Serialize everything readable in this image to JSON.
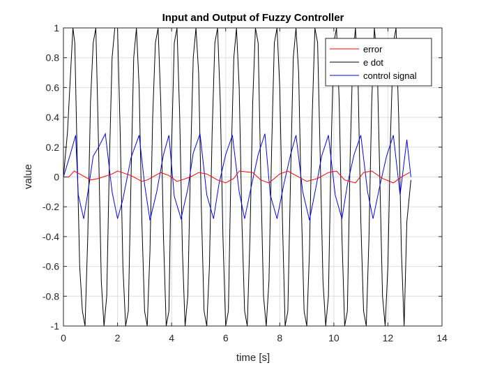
{
  "chart_data": {
    "type": "line",
    "title": "Input and Output of Fuzzy Controller",
    "xlabel": "time [s]",
    "ylabel": "value",
    "xlim": [
      0,
      14
    ],
    "ylim": [
      -1,
      1
    ],
    "xticks": [
      0,
      2,
      4,
      6,
      8,
      10,
      12,
      14
    ],
    "yticks": [
      -1,
      -0.8,
      -0.6,
      -0.4,
      -0.2,
      0,
      0.2,
      0.4,
      0.6,
      0.8,
      1
    ],
    "xtick_labels": [
      "0",
      "2",
      "4",
      "6",
      "8",
      "10",
      "12",
      "14"
    ],
    "ytick_labels": [
      "-1",
      "-0.8",
      "-0.6",
      "-0.4",
      "-0.2",
      "0",
      "0.2",
      "0.4",
      "0.6",
      "0.8",
      "1"
    ],
    "grid": true,
    "legend_position": "top-right",
    "series": [
      {
        "name": "error",
        "color": "#ff0000",
        "x": [
          0,
          0.2,
          0.4,
          0.6,
          1.0,
          1.3,
          1.8,
          2.0,
          2.5,
          2.9,
          3.1,
          3.6,
          3.9,
          4.2,
          4.7,
          5.0,
          5.3,
          5.7,
          6.0,
          6.3,
          6.5,
          7.0,
          7.3,
          7.6,
          8.0,
          8.3,
          8.6,
          9.0,
          9.4,
          9.8,
          10.1,
          10.4,
          10.8,
          11.1,
          11.4,
          11.8,
          12.2,
          12.5,
          12.8
        ],
        "y": [
          0,
          0,
          0.04,
          0.02,
          -0.02,
          -0.01,
          0.02,
          0.04,
          0.01,
          -0.03,
          -0.02,
          0.03,
          0.01,
          -0.03,
          0.0,
          0.03,
          0.02,
          -0.02,
          -0.04,
          -0.01,
          0.04,
          0.03,
          -0.02,
          -0.04,
          0.02,
          0.04,
          0.01,
          -0.03,
          -0.01,
          0.03,
          0.04,
          -0.02,
          -0.04,
          0.03,
          0.04,
          -0.01,
          -0.04,
          0.0,
          0.03
        ]
      },
      {
        "name": "e dot",
        "color": "#000000",
        "x": [
          0,
          0.15,
          0.35,
          0.42,
          0.5,
          0.6,
          0.7,
          0.8,
          0.9,
          1.0,
          1.1,
          1.2,
          1.3,
          1.4,
          1.5,
          1.6,
          1.7,
          1.8,
          1.9,
          2.0,
          2.1,
          2.2,
          2.3,
          2.4,
          2.5,
          2.6,
          2.7,
          2.8,
          2.9,
          3.0,
          3.1,
          3.2,
          3.3,
          3.4,
          3.5,
          3.6,
          3.7,
          3.8,
          3.9,
          4.0,
          4.1,
          4.2,
          4.3,
          4.4,
          4.5,
          4.6,
          4.7,
          4.8,
          4.9,
          5.0,
          5.1,
          5.2,
          5.3,
          5.4,
          5.5,
          5.6,
          5.7,
          5.8,
          5.9,
          6.0,
          6.1,
          6.2,
          6.3,
          6.4,
          6.5,
          6.6,
          6.7,
          6.8,
          6.9,
          7.0,
          7.1,
          7.2,
          7.3,
          7.4,
          7.5,
          7.6,
          7.7,
          7.8,
          7.9,
          8.0,
          8.1,
          8.2,
          8.3,
          8.4,
          8.5,
          8.6,
          8.7,
          8.8,
          8.9,
          9.0,
          9.1,
          9.2,
          9.3,
          9.4,
          9.5,
          9.6,
          9.7,
          9.8,
          9.9,
          10.0,
          10.1,
          10.2,
          10.3,
          10.4,
          10.5,
          10.6,
          10.7,
          10.8,
          10.9,
          11.0,
          11.1,
          11.2,
          11.3,
          11.4,
          11.5,
          11.6,
          11.7,
          11.8,
          11.9,
          12.0,
          12.1,
          12.2,
          12.3,
          12.4,
          12.5,
          12.6,
          12.7,
          12.85
        ],
        "y": [
          0,
          0.3,
          1.0,
          0.9,
          0.2,
          -0.6,
          -0.9,
          -1.0,
          -0.4,
          0.5,
          0.9,
          1.0,
          0.2,
          -0.7,
          -1.0,
          -0.8,
          0.1,
          0.8,
          1.0,
          1.0,
          0.3,
          -0.6,
          -1.0,
          -0.9,
          0.0,
          0.8,
          1.0,
          0.6,
          -0.3,
          -0.9,
          -1.0,
          -0.5,
          0.4,
          0.9,
          1.0,
          0.5,
          -0.4,
          -1.0,
          -0.9,
          0.2,
          0.9,
          1.0,
          0.4,
          -0.5,
          -1.0,
          -0.8,
          0.1,
          0.8,
          1.0,
          0.7,
          -0.2,
          -0.9,
          -1.0,
          -0.6,
          0.3,
          0.9,
          1.0,
          0.5,
          -0.4,
          -1.0,
          -0.9,
          0.1,
          0.8,
          1.0,
          0.6,
          -0.3,
          -0.9,
          -1.0,
          -0.4,
          0.5,
          1.0,
          0.9,
          0.0,
          -0.8,
          -1.0,
          -0.7,
          0.2,
          0.9,
          1.0,
          0.6,
          -0.3,
          -1.0,
          -0.9,
          0.0,
          0.8,
          1.0,
          0.7,
          -0.2,
          -0.9,
          -1.0,
          -0.5,
          0.4,
          1.0,
          0.9,
          0.1,
          -0.7,
          -1.0,
          -0.8,
          0.2,
          0.9,
          1.0,
          0.5,
          -0.4,
          -1.0,
          -0.9,
          0.1,
          0.8,
          1.0,
          0.6,
          -0.3,
          -0.9,
          -1.0,
          -0.4,
          0.5,
          1.0,
          0.8,
          0.0,
          -0.8,
          -1.0,
          -0.6,
          0.3,
          0.9,
          1.0,
          0.4,
          -0.5,
          -1.0,
          -0.3,
          -0.02
        ]
      },
      {
        "name": "control signal",
        "color": "#0000ff",
        "x": [
          0,
          0.25,
          0.45,
          0.55,
          0.75,
          0.95,
          1.1,
          1.3,
          1.55,
          1.8,
          2.0,
          2.2,
          2.5,
          2.8,
          3.0,
          3.2,
          3.45,
          3.7,
          3.9,
          4.1,
          4.35,
          4.6,
          4.8,
          5.05,
          5.3,
          5.55,
          5.75,
          6.0,
          6.25,
          6.5,
          6.7,
          6.95,
          7.2,
          7.45,
          7.65,
          7.9,
          8.15,
          8.4,
          8.6,
          8.85,
          9.1,
          9.35,
          9.55,
          9.8,
          10.05,
          10.3,
          10.5,
          10.75,
          11.0,
          11.25,
          11.45,
          11.7,
          11.95,
          12.2,
          12.45,
          12.7,
          12.85
        ],
        "y": [
          0,
          0.15,
          0.28,
          -0.12,
          -0.28,
          -0.05,
          0.14,
          0.2,
          0.29,
          -0.1,
          -0.28,
          -0.15,
          0.13,
          0.28,
          -0.05,
          -0.29,
          -0.1,
          0.15,
          0.28,
          -0.13,
          -0.28,
          -0.08,
          0.16,
          0.29,
          -0.12,
          -0.28,
          -0.05,
          0.15,
          0.28,
          -0.1,
          -0.28,
          -0.06,
          0.15,
          0.29,
          -0.12,
          -0.28,
          -0.05,
          0.15,
          0.28,
          -0.1,
          -0.29,
          -0.06,
          0.14,
          0.28,
          -0.12,
          -0.28,
          -0.05,
          0.15,
          0.28,
          -0.1,
          -0.28,
          -0.06,
          0.14,
          0.28,
          -0.12,
          0.25,
          0.0
        ]
      }
    ]
  }
}
